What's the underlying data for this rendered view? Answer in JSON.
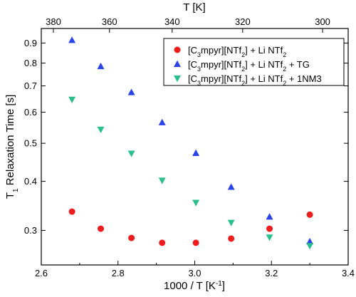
{
  "chart_data": {
    "type": "scatter",
    "xlabel": "1000 / T [K",
    "xlabel_sup": "-1",
    "xlabel_suffix": "]",
    "ylabel": "T",
    "ylabel_sub": "1",
    "ylabel_suffix": " Relaxation Time [s]",
    "top_xlabel": "T [K]",
    "xlim": [
      2.6,
      3.4
    ],
    "ylim": [
      0.245,
      0.98
    ],
    "yscale": "log",
    "legend_position": "top-right",
    "grid": false,
    "x_ticks": [
      "2.6",
      "2.8",
      "3.0",
      "3.2",
      "3.4"
    ],
    "y_ticks": [
      "0.3",
      "0.4",
      "0.5",
      "0.6",
      "0.7",
      "0.8",
      "0.9"
    ],
    "top_ticks": [
      "380",
      "360",
      "340",
      "320",
      "300"
    ],
    "series": [
      {
        "name": "[C3mpyr][NTf2] + Li NTf2",
        "legend_parts": [
          "[C",
          "3",
          "mpyr][NTf",
          "2",
          "] + Li NTf",
          "2",
          ""
        ],
        "marker": "circle",
        "color": "#ee1c1c",
        "x": [
          2.68,
          2.755,
          2.835,
          2.915,
          3.003,
          3.095,
          3.195,
          3.3
        ],
        "y": [
          0.335,
          0.303,
          0.287,
          0.279,
          0.279,
          0.286,
          0.303,
          0.329
        ]
      },
      {
        "name": "[C3mpyr][NTf2] + Li NTf2 + TG",
        "legend_parts": [
          "[C",
          "3",
          "mpyr][NTf",
          "2",
          "] + Li NTf",
          "2",
          " + TG"
        ],
        "marker": "triangle-up",
        "color": "#2b44e8",
        "x": [
          2.68,
          2.755,
          2.835,
          2.915,
          3.003,
          3.095,
          3.195,
          3.3
        ],
        "y": [
          0.915,
          0.785,
          0.674,
          0.565,
          0.472,
          0.387,
          0.325,
          0.281
        ]
      },
      {
        "name": "[C3mpyr][NTf2] + Li NTf2 + 1NM3",
        "legend_parts": [
          "[C",
          "3",
          "mpyr][NTf",
          "2",
          "] + Li NTf",
          "2",
          " + 1NM3"
        ],
        "marker": "triangle-down",
        "color": "#2bbf8f",
        "x": [
          2.68,
          2.755,
          2.835,
          2.915,
          3.003,
          3.095,
          3.195,
          3.3
        ],
        "y": [
          0.646,
          0.542,
          0.471,
          0.402,
          0.353,
          0.314,
          0.288,
          0.274
        ]
      }
    ]
  }
}
